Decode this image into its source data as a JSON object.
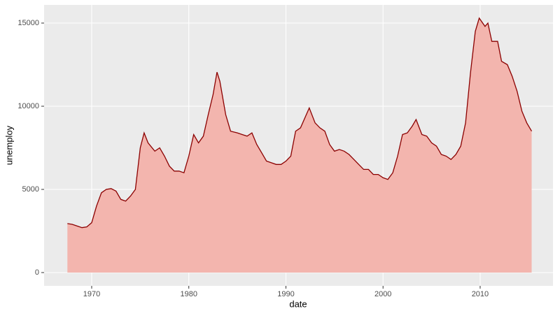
{
  "chart_data": {
    "type": "area",
    "x_label": "date",
    "y_label": "unemploy",
    "x": [
      1967.5,
      1968,
      1968.5,
      1969,
      1969.5,
      1970,
      1970.5,
      1971,
      1971.5,
      1972,
      1972.5,
      1973,
      1973.5,
      1974,
      1974.5,
      1975,
      1975.4,
      1975.8,
      1976.5,
      1977,
      1977.5,
      1978,
      1978.5,
      1979,
      1979.5,
      1980,
      1980.5,
      1981,
      1981.5,
      1982,
      1982.5,
      1982.9,
      1983.2,
      1983.8,
      1984.3,
      1985,
      1985.5,
      1986,
      1986.5,
      1987,
      1987.5,
      1988,
      1988.5,
      1989,
      1989.5,
      1990,
      1990.5,
      1991,
      1991.5,
      1992.4,
      1993,
      1993.5,
      1994,
      1994.5,
      1995,
      1995.5,
      1996,
      1996.5,
      1997,
      1997.5,
      1998,
      1998.5,
      1999,
      1999.5,
      2000,
      2000.5,
      2001,
      2001.5,
      2002,
      2002.5,
      2003,
      2003.4,
      2004,
      2004.5,
      2005,
      2005.5,
      2006,
      2006.5,
      2007,
      2007.5,
      2008,
      2008.5,
      2009,
      2009.5,
      2009.9,
      2010.5,
      2010.8,
      2011.2,
      2011.8,
      2012.2,
      2012.8,
      2013.3,
      2013.8,
      2014.3,
      2014.8,
      2015.3
    ],
    "values": [
      2944,
      2900,
      2800,
      2700,
      2750,
      3000,
      4000,
      4800,
      5000,
      5050,
      4900,
      4400,
      4300,
      4600,
      5000,
      7500,
      8400,
      7800,
      7300,
      7500,
      7000,
      6400,
      6100,
      6100,
      6000,
      7000,
      8300,
      7800,
      8200,
      9500,
      10700,
      12050,
      11500,
      9500,
      8500,
      8400,
      8300,
      8200,
      8400,
      7700,
      7200,
      6700,
      6600,
      6500,
      6500,
      6700,
      7000,
      8500,
      8700,
      9900,
      9000,
      8700,
      8500,
      7700,
      7300,
      7400,
      7300,
      7100,
      6800,
      6500,
      6200,
      6200,
      5900,
      5900,
      5700,
      5600,
      6000,
      7000,
      8300,
      8400,
      8800,
      9200,
      8300,
      8200,
      7800,
      7600,
      7100,
      7000,
      6800,
      7100,
      7600,
      9000,
      12000,
      14500,
      15300,
      14800,
      15000,
      13900,
      13900,
      12700,
      12500,
      11800,
      10900,
      9700,
      9000,
      8500
    ],
    "fill_color": "#f3b5ae",
    "line_color": "#8b0000",
    "xlim": [
      1965.1,
      2017.5
    ],
    "ylim": [
      -798,
      16092
    ],
    "xticks": [
      1970,
      1980,
      1990,
      2000,
      2010
    ],
    "yticks": [
      0,
      5000,
      10000,
      15000
    ],
    "grid": true
  }
}
